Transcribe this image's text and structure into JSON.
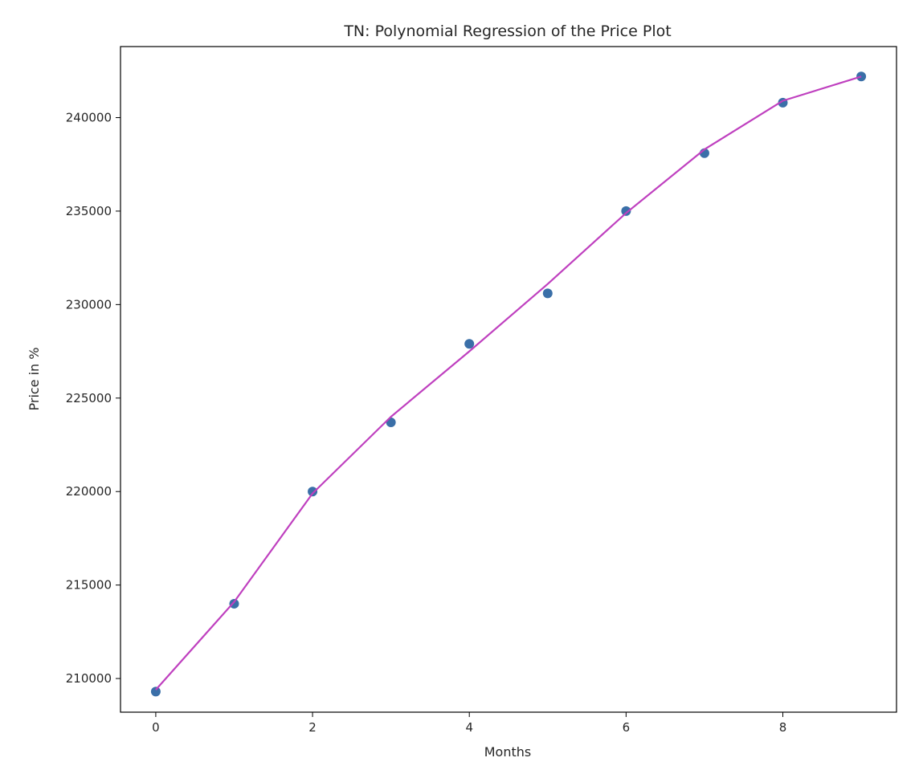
{
  "chart_data": {
    "type": "scatter",
    "title": "TN: Polynomial Regression of the Price Plot",
    "xlabel": "Months",
    "ylabel": "Price in %",
    "xlim": [
      -0.45,
      9.45
    ],
    "ylim": [
      208200,
      243800
    ],
    "xticks": [
      0,
      2,
      4,
      6,
      8
    ],
    "yticks": [
      210000,
      215000,
      220000,
      225000,
      230000,
      235000,
      240000
    ],
    "grid": false,
    "series": [
      {
        "kind": "scatter",
        "color": "#3a6fa8",
        "x": [
          0,
          1,
          2,
          3,
          4,
          5,
          6,
          7,
          8,
          9
        ],
        "y": [
          209300,
          214000,
          220000,
          223700,
          227900,
          230600,
          235000,
          238100,
          240800,
          242200
        ]
      },
      {
        "kind": "line",
        "color": "#bf40bf",
        "x": [
          0,
          1,
          2,
          3,
          4,
          5,
          6,
          7,
          8,
          9
        ],
        "y": [
          209400,
          214100,
          219900,
          224000,
          227500,
          231100,
          234900,
          238300,
          240900,
          242200
        ]
      }
    ]
  }
}
